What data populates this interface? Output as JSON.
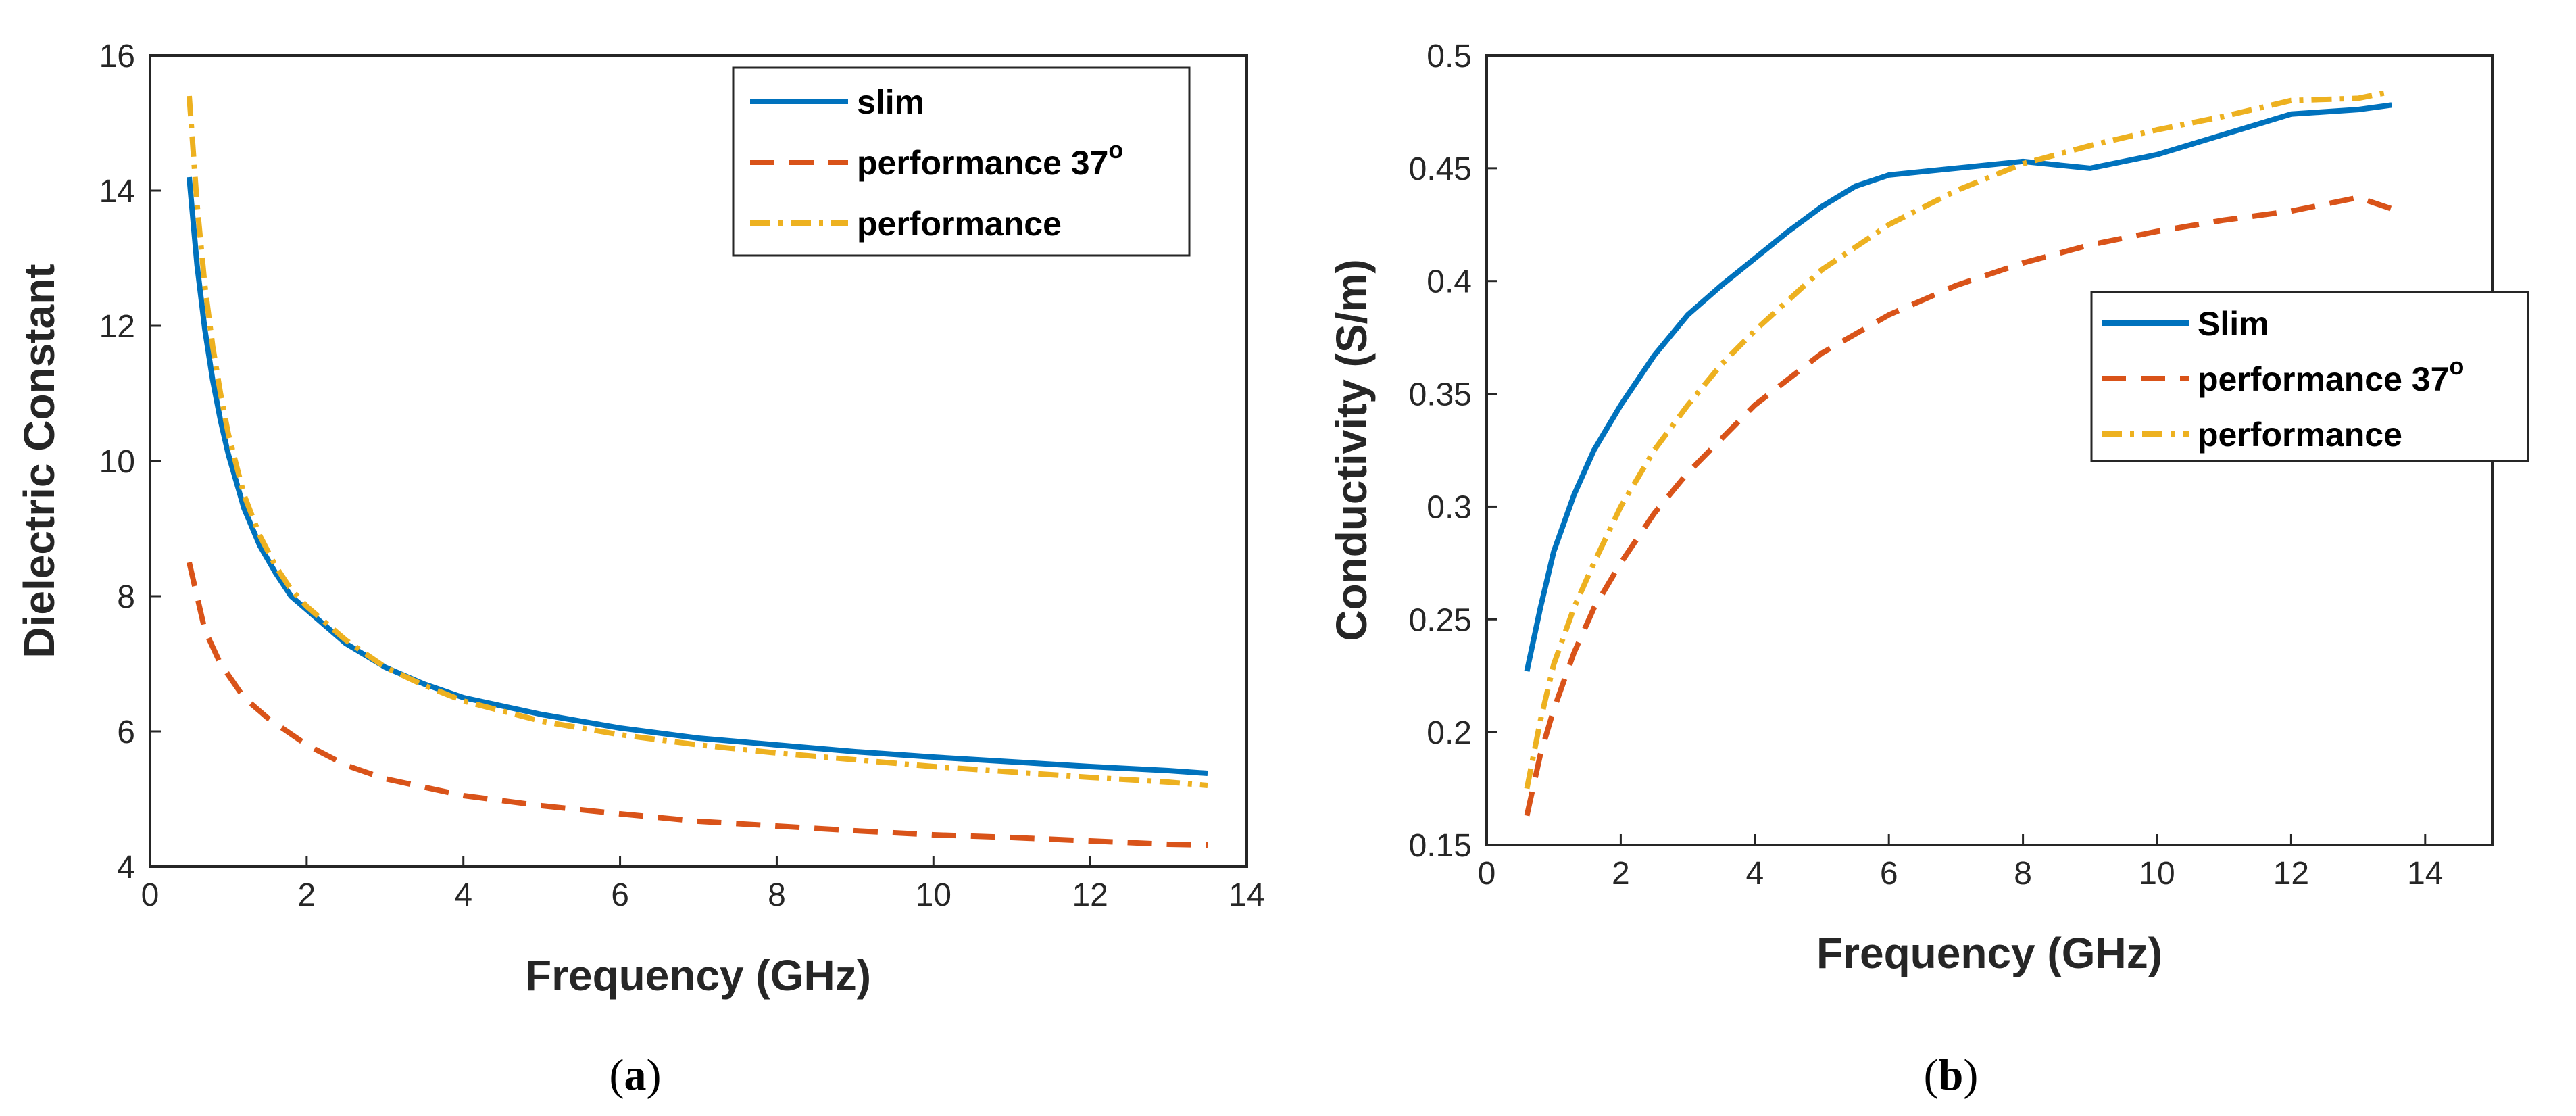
{
  "chart_data": [
    {
      "id": "a",
      "type": "line",
      "caption": "a",
      "xlabel": "Frequency (GHz)",
      "ylabel": "Dielectric Constant",
      "xlim": [
        0,
        14
      ],
      "ylim": [
        4,
        16
      ],
      "xticks": [
        "0",
        "2",
        "4",
        "6",
        "8",
        "10",
        "12",
        "14"
      ],
      "yticks": [
        "4",
        "6",
        "8",
        "10",
        "12",
        "14",
        "16"
      ],
      "grid": false,
      "legend_position": "top-right",
      "series": [
        {
          "name": "slim",
          "color": "#0072BD",
          "dash": "solid",
          "x": [
            0.5,
            0.6,
            0.7,
            0.8,
            0.9,
            1.0,
            1.2,
            1.4,
            1.6,
            1.8,
            2.0,
            2.5,
            3.0,
            3.5,
            4.0,
            5.0,
            6.0,
            7.0,
            8.0,
            9.0,
            10.0,
            11.0,
            12.0,
            13.0,
            13.5
          ],
          "y": [
            14.2,
            12.9,
            11.95,
            11.2,
            10.6,
            10.1,
            9.3,
            8.75,
            8.35,
            8.0,
            7.8,
            7.3,
            6.95,
            6.7,
            6.5,
            6.25,
            6.05,
            5.9,
            5.8,
            5.7,
            5.62,
            5.55,
            5.48,
            5.42,
            5.38
          ]
        },
        {
          "name": "performance 37",
          "name_superscript": "o",
          "color": "#D95319",
          "dash": "dashed",
          "x": [
            0.5,
            0.7,
            0.9,
            1.2,
            1.5,
            2.0,
            2.5,
            3.0,
            4.0,
            5.0,
            6.0,
            7.0,
            8.0,
            9.0,
            10.0,
            11.0,
            12.0,
            13.0,
            13.5
          ],
          "y": [
            8.5,
            7.5,
            7.0,
            6.5,
            6.2,
            5.8,
            5.5,
            5.3,
            5.05,
            4.9,
            4.78,
            4.67,
            4.6,
            4.53,
            4.47,
            4.43,
            4.38,
            4.33,
            4.32
          ]
        },
        {
          "name": "performance",
          "color": "#EDB120",
          "dash": "dashdot",
          "x": [
            0.5,
            0.6,
            0.7,
            0.8,
            0.9,
            1.0,
            1.2,
            1.4,
            1.6,
            1.8,
            2.0,
            2.5,
            3.0,
            3.5,
            4.0,
            5.0,
            6.0,
            7.0,
            8.0,
            9.0,
            10.0,
            11.0,
            12.0,
            13.0,
            13.5
          ],
          "y": [
            15.4,
            13.8,
            12.6,
            11.7,
            11.0,
            10.4,
            9.5,
            8.9,
            8.45,
            8.1,
            7.85,
            7.35,
            6.95,
            6.68,
            6.45,
            6.15,
            5.95,
            5.8,
            5.68,
            5.58,
            5.48,
            5.4,
            5.32,
            5.25,
            5.2
          ]
        }
      ]
    },
    {
      "id": "b",
      "type": "line",
      "caption": "b",
      "xlabel": "Frequency (GHz)",
      "ylabel": "Conductivity  (S/m)",
      "xlim": [
        0,
        15
      ],
      "ylim": [
        0.15,
        0.5
      ],
      "xticks": [
        "0",
        "2",
        "4",
        "6",
        "8",
        "10",
        "12",
        "14"
      ],
      "yticks": [
        "0.15",
        "0.2",
        "0.25",
        "0.3",
        "0.35",
        "0.4",
        "0.45",
        "0.5"
      ],
      "grid": false,
      "legend_position": "right",
      "series": [
        {
          "name": "Slim",
          "color": "#0072BD",
          "dash": "solid",
          "x": [
            0.6,
            0.8,
            1.0,
            1.3,
            1.6,
            2.0,
            2.5,
            3.0,
            3.5,
            4.0,
            4.5,
            5.0,
            5.5,
            6.0,
            7.0,
            8.0,
            9.0,
            10.0,
            11.0,
            12.0,
            13.0,
            13.5
          ],
          "y": [
            0.227,
            0.255,
            0.28,
            0.305,
            0.325,
            0.345,
            0.367,
            0.385,
            0.398,
            0.41,
            0.422,
            0.433,
            0.442,
            0.447,
            0.45,
            0.453,
            0.45,
            0.456,
            0.465,
            0.474,
            0.476,
            0.478
          ]
        },
        {
          "name": "performance 37",
          "name_superscript": "o",
          "color": "#D95319",
          "dash": "dashed",
          "x": [
            0.6,
            0.8,
            1.0,
            1.3,
            1.6,
            2.0,
            2.5,
            3.0,
            4.0,
            5.0,
            6.0,
            7.0,
            8.0,
            9.0,
            10.0,
            11.0,
            12.0,
            13.0,
            13.5
          ],
          "y": [
            0.163,
            0.19,
            0.21,
            0.235,
            0.255,
            0.275,
            0.297,
            0.315,
            0.345,
            0.368,
            0.385,
            0.398,
            0.408,
            0.416,
            0.422,
            0.427,
            0.431,
            0.437,
            0.432
          ]
        },
        {
          "name": "performance",
          "color": "#EDB120",
          "dash": "dashdot",
          "x": [
            0.6,
            0.8,
            1.0,
            1.3,
            1.6,
            2.0,
            2.5,
            3.0,
            3.5,
            4.0,
            5.0,
            6.0,
            7.0,
            8.0,
            9.0,
            10.0,
            11.0,
            12.0,
            13.0,
            13.5
          ],
          "y": [
            0.175,
            0.205,
            0.23,
            0.255,
            0.275,
            0.3,
            0.325,
            0.345,
            0.363,
            0.378,
            0.405,
            0.425,
            0.44,
            0.452,
            0.46,
            0.467,
            0.473,
            0.48,
            0.481,
            0.484
          ]
        }
      ]
    }
  ]
}
